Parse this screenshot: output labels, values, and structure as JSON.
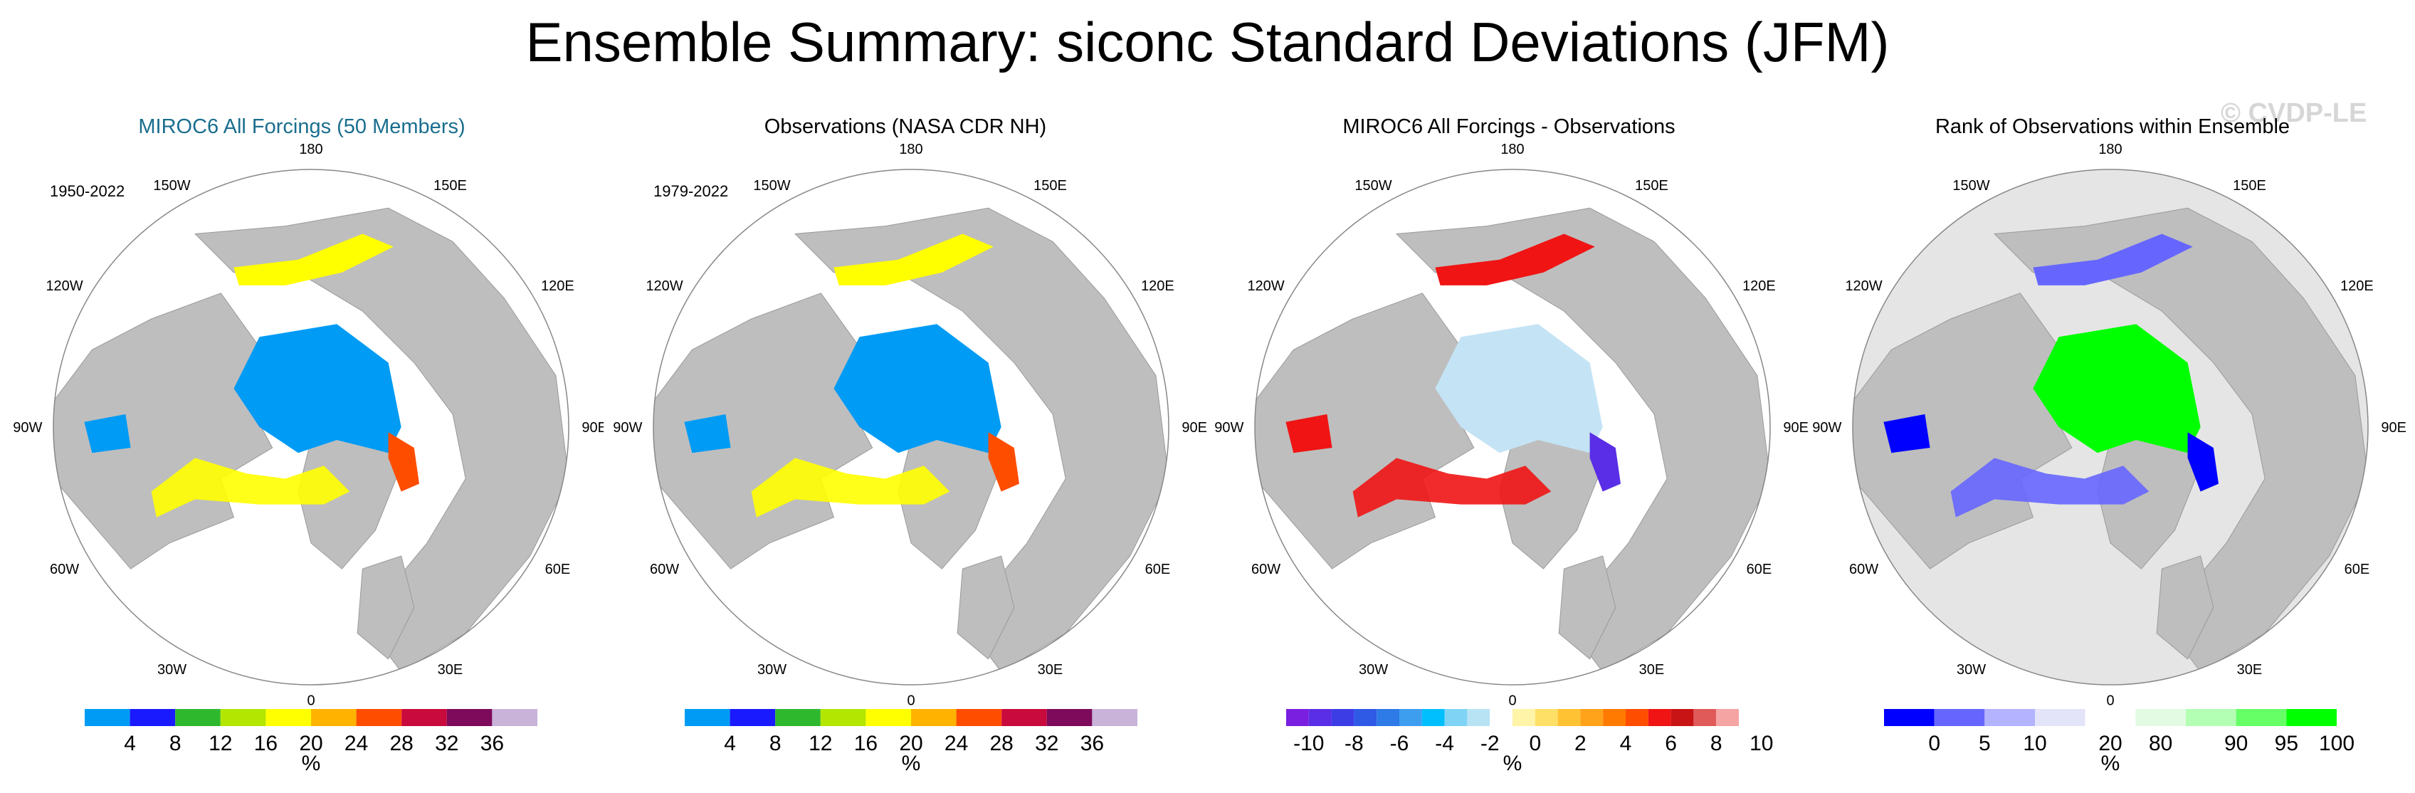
{
  "title": "Ensemble Summary: siconc Standard Deviations (JFM)",
  "watermark": "© CVDP-LE",
  "unit": "%",
  "lon_labels": [
    "180",
    "150W",
    "150E",
    "120W",
    "120E",
    "90W",
    "90E",
    "60W",
    "60E",
    "30W",
    "30E",
    "0"
  ],
  "panels": [
    {
      "title": "MIROC6 All Forcings (50 Members)",
      "title_color": "#1a6e8e",
      "period": "1950-2022",
      "style": "sd",
      "colors": [
        "#009bf5",
        "#1a1aff",
        "#2eb82e",
        "#b3e600",
        "#ffff00",
        "#ffb300",
        "#ff4d00",
        "#c80a3c",
        "#7d0a5a",
        "#c9b3d9"
      ],
      "tick_labels": [
        "4",
        "8",
        "12",
        "16",
        "20",
        "24",
        "28",
        "32",
        "36"
      ]
    },
    {
      "title": "Observations (NASA CDR NH)",
      "title_color": "#000000",
      "period": "1979-2022",
      "style": "sd",
      "colors": [
        "#009bf5",
        "#1a1aff",
        "#2eb82e",
        "#b3e600",
        "#ffff00",
        "#ffb300",
        "#ff4d00",
        "#c80a3c",
        "#7d0a5a",
        "#c9b3d9"
      ],
      "tick_labels": [
        "4",
        "8",
        "12",
        "16",
        "20",
        "24",
        "28",
        "32",
        "36"
      ]
    },
    {
      "title": "MIROC6 All Forcings - Observations",
      "title_color": "#000000",
      "period": "",
      "style": "diff",
      "colors": [
        "#7a1fe0",
        "#5a2ee6",
        "#3d3de6",
        "#2e5ae6",
        "#2e7ae6",
        "#3d9ef0",
        "#00bfff",
        "#7fd4f5",
        "#b8e3f5",
        "#ffffff",
        "#fff4a8",
        "#ffe066",
        "#ffc233",
        "#ffa31a",
        "#ff7a00",
        "#ff4d00",
        "#f01414",
        "#c81414",
        "#e05a5a",
        "#f5a3a3"
      ],
      "tick_labels": [
        "-10",
        "-8",
        "-6",
        "-4",
        "-2",
        "0",
        "2",
        "4",
        "6",
        "8",
        "10"
      ]
    },
    {
      "title": "Rank of Observations within Ensemble",
      "title_color": "#000000",
      "period": "",
      "style": "rank",
      "colors": [
        "#0000ff",
        "#6666ff",
        "#b3b3ff",
        "#e3e3fa",
        "#ffffff",
        "#e3fae3",
        "#b3ffb3",
        "#66ff66",
        "#00ff00"
      ],
      "tick_labels": [
        "0",
        "5",
        "10",
        "20",
        "80",
        "90",
        "95",
        "100"
      ]
    }
  ]
}
